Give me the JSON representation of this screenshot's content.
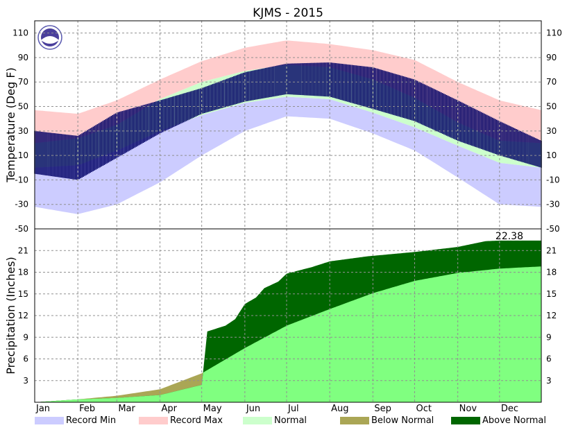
{
  "chart_data": {
    "type": "area",
    "title": "KJMS - 2015",
    "months": [
      "Jan",
      "Feb",
      "Mar",
      "Apr",
      "May",
      "Jun",
      "Jul",
      "Aug",
      "Sep",
      "Oct",
      "Nov",
      "Dec"
    ],
    "temperature": {
      "ylabel": "Temperature (Deg F)",
      "ylim": [
        -50,
        120
      ],
      "yticks": [
        -50,
        -30,
        -10,
        10,
        30,
        50,
        70,
        90,
        110
      ],
      "x_day_of_year": [
        1,
        32,
        60,
        91,
        121,
        152,
        182,
        213,
        244,
        274,
        305,
        335,
        365
      ],
      "record_max": [
        47,
        44,
        55,
        72,
        87,
        98,
        104,
        101,
        96,
        88,
        70,
        55,
        47
      ],
      "record_min": [
        -32,
        -38,
        -30,
        -12,
        10,
        30,
        42,
        40,
        28,
        14,
        -8,
        -30,
        -32
      ],
      "normal_high": [
        20,
        24,
        35,
        56,
        70,
        79,
        84,
        82,
        72,
        57,
        37,
        22,
        20
      ],
      "normal_low": [
        0,
        2,
        14,
        30,
        43,
        53,
        58,
        56,
        45,
        33,
        18,
        4,
        0
      ],
      "observed_high": [
        30,
        26,
        45,
        55,
        65,
        78,
        85,
        86,
        82,
        72,
        55,
        38,
        22
      ],
      "observed_low": [
        -5,
        -10,
        8,
        28,
        44,
        54,
        60,
        58,
        48,
        38,
        22,
        10,
        0
      ],
      "grid": true
    },
    "precipitation": {
      "ylabel": "Precipitation (Inches)",
      "ylim": [
        0,
        24
      ],
      "yticks": [
        3,
        6,
        9,
        12,
        15,
        18,
        21
      ],
      "normal_cumulative_day": [
        1,
        32,
        60,
        91,
        121,
        152,
        182,
        213,
        244,
        274,
        305,
        335,
        365
      ],
      "normal_cumulative": [
        0,
        0.4,
        0.9,
        1.8,
        4.0,
        7.5,
        10.6,
        12.9,
        15.1,
        16.8,
        17.9,
        18.5,
        18.8
      ],
      "observed_cumulative_day": [
        1,
        32,
        60,
        91,
        121,
        125,
        138,
        145,
        152,
        160,
        166,
        176,
        182,
        200,
        213,
        240,
        274,
        305,
        325,
        335,
        365
      ],
      "observed_cumulative": [
        0,
        0.4,
        0.6,
        1.0,
        2.4,
        9.8,
        10.6,
        11.5,
        13.6,
        14.5,
        15.8,
        16.7,
        17.8,
        18.7,
        19.5,
        20.2,
        20.8,
        21.5,
        22.3,
        22.38,
        22.38
      ],
      "total_label": "22.38",
      "grid": true
    },
    "legend": [
      {
        "label": "Record Min",
        "color": "#ccccff"
      },
      {
        "label": "Record Max",
        "color": "#ffcccc"
      },
      {
        "label": "Normal",
        "color": "#ccffcc"
      },
      {
        "label": "Below Normal",
        "color": "#aaa655"
      },
      {
        "label": "Above Normal",
        "color": "#006600"
      }
    ],
    "colors": {
      "observed_temp": "#000066",
      "normal_precip": "#80ff80"
    }
  }
}
